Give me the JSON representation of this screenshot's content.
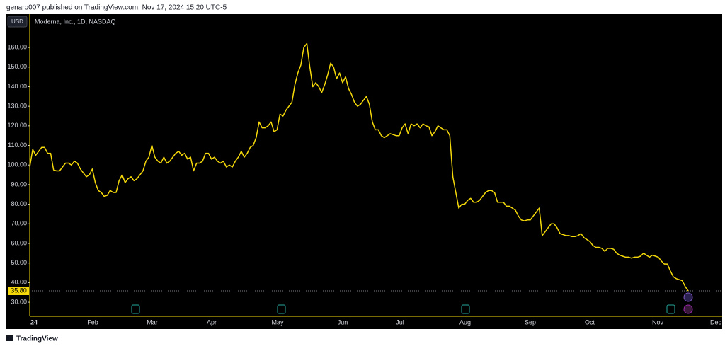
{
  "header": "genaro007 published on TradingView.com, Nov 17, 2024 15:20 UTC-5",
  "footer": "TradingView",
  "currency": "USD",
  "chart_data": {
    "type": "line",
    "title": "Moderna, Inc., 1D, NASDAQ",
    "x_labels": [
      "24",
      "Feb",
      "Mar",
      "Apr",
      "May",
      "Jun",
      "Jul",
      "Aug",
      "Sep",
      "Oct",
      "Nov",
      "Dec"
    ],
    "series": [
      {
        "color": "#f5d90a",
        "values": [
          99,
          108,
          105,
          107,
          109,
          109,
          106,
          106,
          97.5,
          97,
          97,
          99,
          101,
          101,
          100,
          102,
          101,
          98,
          96,
          94,
          95,
          98,
          91,
          87,
          86,
          84,
          84.5,
          87,
          86,
          86,
          92,
          95,
          91,
          93,
          94,
          92,
          93,
          95,
          97,
          102,
          104,
          110,
          104,
          102,
          101,
          104,
          101,
          102,
          104,
          106,
          107,
          105,
          106,
          103,
          104,
          97,
          101,
          101,
          102,
          106,
          106,
          103,
          104,
          102,
          101,
          102,
          99,
          100,
          99,
          102,
          104,
          107,
          104,
          106,
          109,
          110,
          114,
          122,
          119,
          119,
          120,
          122,
          117,
          118,
          126,
          125,
          128,
          130,
          132,
          141,
          147,
          151,
          160,
          162,
          150,
          140,
          142,
          140,
          137,
          141,
          146,
          152,
          150,
          144,
          147,
          142,
          145,
          139,
          136,
          132,
          130,
          131,
          133,
          135,
          131,
          122,
          118,
          118,
          115,
          114,
          115,
          116,
          115.5,
          115,
          115,
          119,
          121,
          116,
          121,
          120,
          121,
          119,
          121,
          120,
          119.5,
          115,
          117,
          120,
          119,
          118,
          118,
          115,
          94,
          86,
          78,
          80,
          80,
          82,
          83,
          81,
          81,
          82,
          84,
          86,
          87,
          87,
          86,
          81,
          81,
          81,
          79,
          79,
          78,
          77,
          74,
          72,
          71.5,
          72,
          72,
          74,
          76,
          78,
          64,
          66,
          68,
          70,
          70,
          68,
          65,
          64.5,
          64,
          64,
          63.5,
          63.5,
          64,
          65,
          63,
          62,
          61,
          59,
          58,
          58,
          57.5,
          56,
          57.5,
          57.5,
          57,
          55,
          54,
          53.5,
          53,
          53,
          52.5,
          53,
          53,
          53.5,
          55,
          54,
          53,
          54,
          53.5,
          53,
          51,
          49.5,
          49.5,
          46,
          43,
          42,
          41.5,
          41,
          38,
          35.8
        ]
      }
    ],
    "ylim": [
      22.8,
      177
    ],
    "yticks": [
      {
        "value": 30,
        "label": "30.00"
      },
      {
        "value": 40,
        "label": "40.00"
      },
      {
        "value": 50,
        "label": "50.00"
      },
      {
        "value": 60,
        "label": "60.00"
      },
      {
        "value": 70,
        "label": "70.00"
      },
      {
        "value": 80,
        "label": "80.00"
      },
      {
        "value": 90,
        "label": "90.00"
      },
      {
        "value": 100,
        "label": "100.00"
      },
      {
        "value": 110,
        "label": "110.00"
      },
      {
        "value": 120,
        "label": "120.00"
      },
      {
        "value": 130,
        "label": "130.00"
      },
      {
        "value": 140,
        "label": "140.00"
      },
      {
        "value": 150,
        "label": "150.00"
      },
      {
        "value": 160,
        "label": "160.00"
      }
    ],
    "price_line": {
      "value": 35.8,
      "label": "35.80"
    }
  }
}
